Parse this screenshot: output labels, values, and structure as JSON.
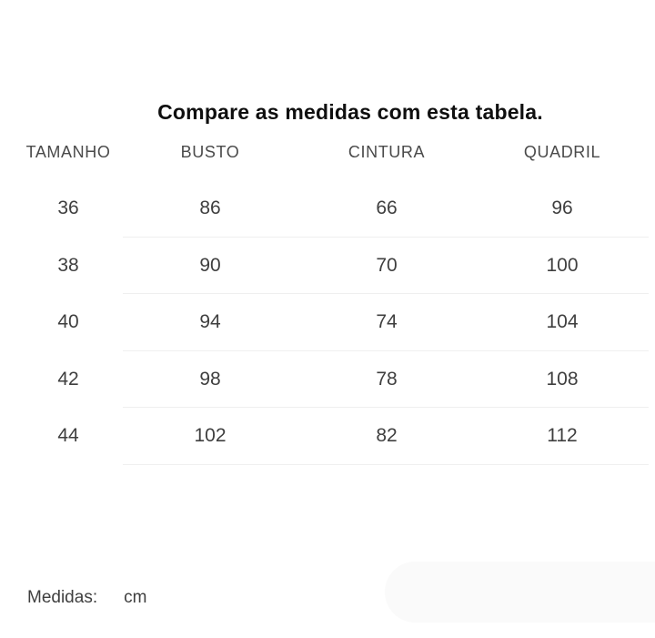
{
  "title": "Compare as medidas com esta tabela.",
  "table": {
    "columns": [
      "TAMANHO",
      "BUSTO",
      "CINTURA",
      "QUADRIL"
    ],
    "rows": [
      [
        "36",
        "86",
        "66",
        "96"
      ],
      [
        "38",
        "90",
        "70",
        "100"
      ],
      [
        "40",
        "94",
        "74",
        "104"
      ],
      [
        "42",
        "98",
        "78",
        "108"
      ],
      [
        "44",
        "102",
        "82",
        "112"
      ]
    ]
  },
  "footer": {
    "label": "Medidas:",
    "unit": "cm"
  },
  "colors": {
    "title": "#0f0f0f",
    "header": "#4a4a4a",
    "cell": "#3f3f3f",
    "divider": "#efefef",
    "pill": "#fafafa"
  }
}
